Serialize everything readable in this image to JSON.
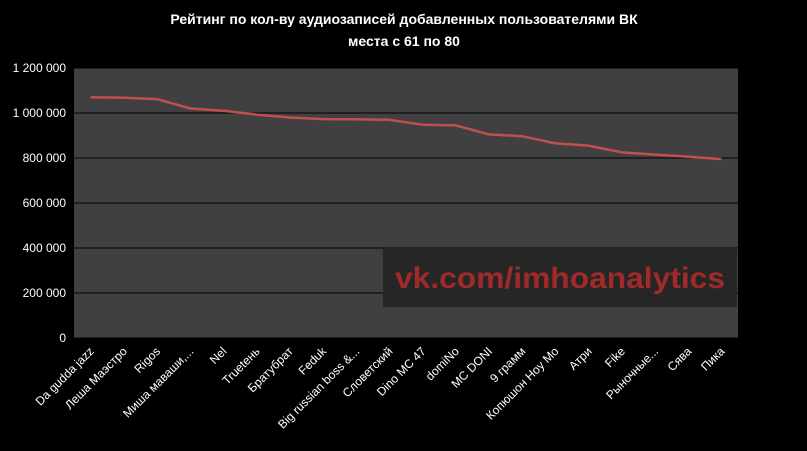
{
  "chart_data": {
    "type": "line",
    "title": "Рейтинг по кол-ву аудиозаписей добавленных пользователями ВК",
    "subtitle": "места с 61 по 80",
    "ylim": [
      0,
      1200000
    ],
    "yticks": [
      0,
      200000,
      400000,
      600000,
      800000,
      1000000,
      1200000
    ],
    "ytick_labels": [
      "0",
      "200 000",
      "400 000",
      "600 000",
      "800 000",
      "1 000 000",
      "1 200 000"
    ],
    "categories": [
      "Da gudda jazz",
      "Леша Маэстро",
      "Rigos",
      "Миша маваши,...",
      "Nel",
      "Truetень",
      "Братубрат",
      "Feduk",
      "Big russian boss &...",
      "Словетский",
      "Dino MC 47",
      "domiNo",
      "MC DONI",
      "9 грамм",
      "Копюшон Hoy Mo",
      "Атри",
      "Fike",
      "Рыночные...",
      "Сява",
      "Пика"
    ],
    "values": [
      1070000,
      1068000,
      1062000,
      1020000,
      1010000,
      993000,
      980000,
      973000,
      972000,
      970000,
      948000,
      945000,
      905000,
      897000,
      865000,
      855000,
      825000,
      815000,
      806000,
      795000
    ],
    "line_color": "#c0504d",
    "plot_bg": "#404040",
    "grid": true,
    "legend": "none"
  },
  "watermark": {
    "text": "vk.com/imhoanalytics",
    "bg_color": "#262626",
    "text_color": "#a02a2a"
  }
}
